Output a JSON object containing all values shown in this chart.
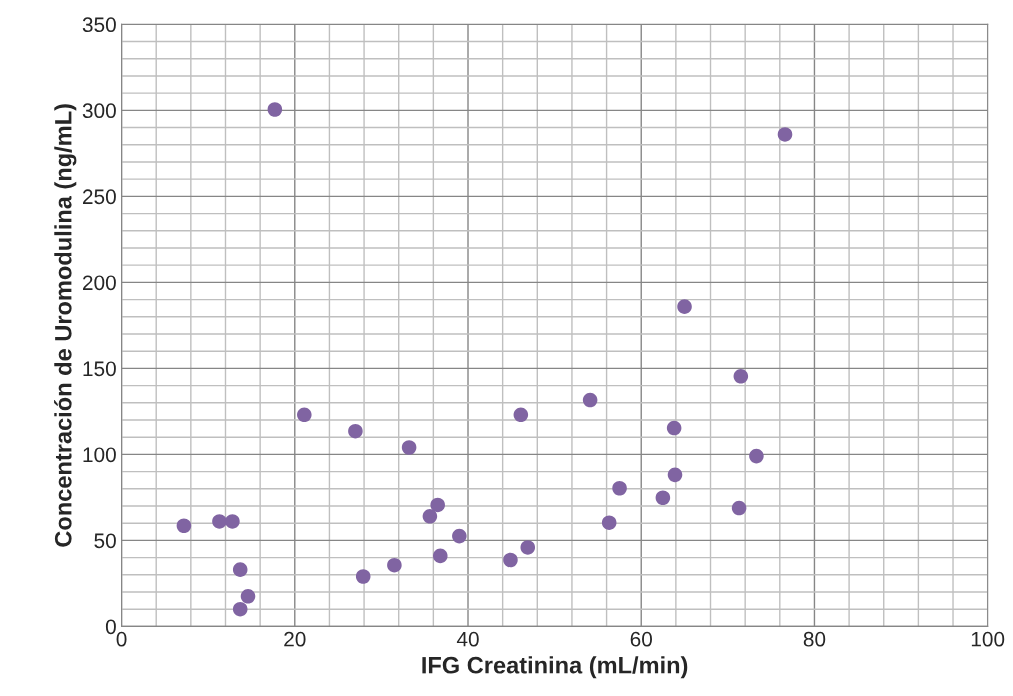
{
  "chart_data": {
    "type": "scatter",
    "xlabel": "IFG Creatinina (mL/min)",
    "ylabel": "Concentración de Uromodulina (ng/mL)",
    "x": [
      7.2,
      11.3,
      12.8,
      13.7,
      13.7,
      14.6,
      17.7,
      21.1,
      27.0,
      27.9,
      31.5,
      33.2,
      35.6,
      36.5,
      36.8,
      39.0,
      44.9,
      46.1,
      46.9,
      54.1,
      56.3,
      57.5,
      62.5,
      63.8,
      63.9,
      65.0,
      71.3,
      71.5,
      73.3,
      76.6
    ],
    "series": [
      {
        "color": "#8064a2",
        "values": [
          58.5,
          61,
          61,
          33,
          10,
          17.5,
          300.5,
          123,
          113.5,
          29,
          35.6,
          104,
          64,
          70.6,
          41,
          52.5,
          38.6,
          123,
          45.9,
          131.6,
          60.3,
          80.3,
          74.8,
          115.3,
          88.1,
          185.9,
          68.8,
          145.4,
          99,
          286
        ]
      }
    ],
    "marker": "circle",
    "grid": true,
    "legend": false,
    "xlim": [
      0,
      100
    ],
    "ylim": [
      0,
      350
    ],
    "xticks": [
      0,
      {
        "value": 4,
        "label": null
      },
      {
        "value": 8,
        "label": null
      },
      {
        "value": 12,
        "label": null
      },
      {
        "value": 16,
        "label": null
      },
      20,
      {
        "value": 24,
        "label": null
      },
      {
        "value": 28,
        "label": null
      },
      {
        "value": 32,
        "label": null
      },
      {
        "value": 36,
        "label": null
      },
      40,
      {
        "value": 44,
        "label": null
      },
      {
        "value": 48,
        "label": null
      },
      {
        "value": 52,
        "label": null
      },
      {
        "value": 56,
        "label": null
      },
      60,
      {
        "value": 64,
        "label": null
      },
      {
        "value": 68,
        "label": null
      },
      {
        "value": 72,
        "label": null
      },
      {
        "value": 76,
        "label": null
      },
      80,
      {
        "value": 84,
        "label": null
      },
      {
        "value": 88,
        "label": null
      },
      {
        "value": 92,
        "label": null
      },
      {
        "value": 96,
        "label": null
      },
      100
    ],
    "yticks": [
      0,
      {
        "value": 10,
        "label": null
      },
      {
        "value": 20,
        "label": null
      },
      {
        "value": 30,
        "label": null
      },
      {
        "value": 40,
        "label": null
      },
      50,
      {
        "value": 60,
        "label": null
      },
      {
        "value": 70,
        "label": null
      },
      {
        "value": 80,
        "label": null
      },
      {
        "value": 90,
        "label": null
      },
      100,
      {
        "value": 110,
        "label": null
      },
      {
        "value": 120,
        "label": null
      },
      {
        "value": 130,
        "label": null
      },
      {
        "value": 140,
        "label": null
      },
      150,
      {
        "value": 160,
        "label": null
      },
      {
        "value": 170,
        "label": null
      },
      {
        "value": 180,
        "label": null
      },
      {
        "value": 190,
        "label": null
      },
      200,
      {
        "value": 210,
        "label": null
      },
      {
        "value": 220,
        "label": null
      },
      {
        "value": 230,
        "label": null
      },
      {
        "value": 240,
        "label": null
      },
      250,
      {
        "value": 260,
        "label": null
      },
      {
        "value": 270,
        "label": null
      },
      {
        "value": 280,
        "label": null
      },
      {
        "value": 290,
        "label": null
      },
      300,
      {
        "value": 310,
        "label": null
      },
      {
        "value": 320,
        "label": null
      },
      {
        "value": 330,
        "label": null
      },
      {
        "value": 340,
        "label": null
      },
      350
    ]
  }
}
